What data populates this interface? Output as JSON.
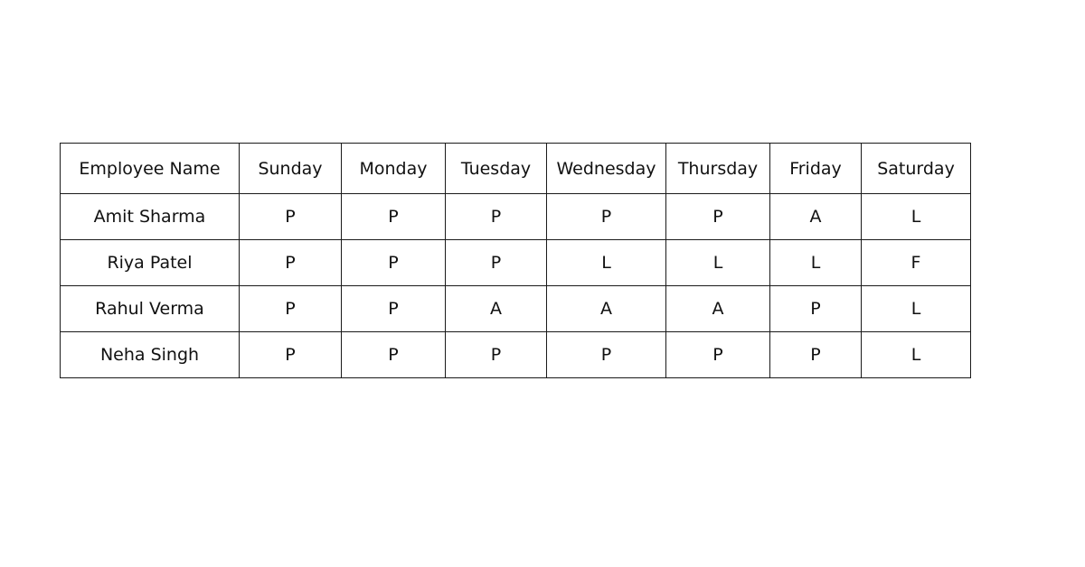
{
  "table": {
    "headers": [
      "Employee Name",
      "Sunday",
      "Monday",
      "Tuesday",
      "Wednesday",
      "Thursday",
      "Friday",
      "Saturday"
    ],
    "rows": [
      [
        "Amit Sharma",
        "P",
        "P",
        "P",
        "P",
        "P",
        "A",
        "L"
      ],
      [
        "Riya Patel",
        "P",
        "P",
        "P",
        "L",
        "L",
        "L",
        "F"
      ],
      [
        "Rahul Verma",
        "P",
        "P",
        "A",
        "A",
        "A",
        "P",
        "L"
      ],
      [
        "Neha Singh",
        "P",
        "P",
        "P",
        "P",
        "P",
        "P",
        "L"
      ]
    ]
  }
}
